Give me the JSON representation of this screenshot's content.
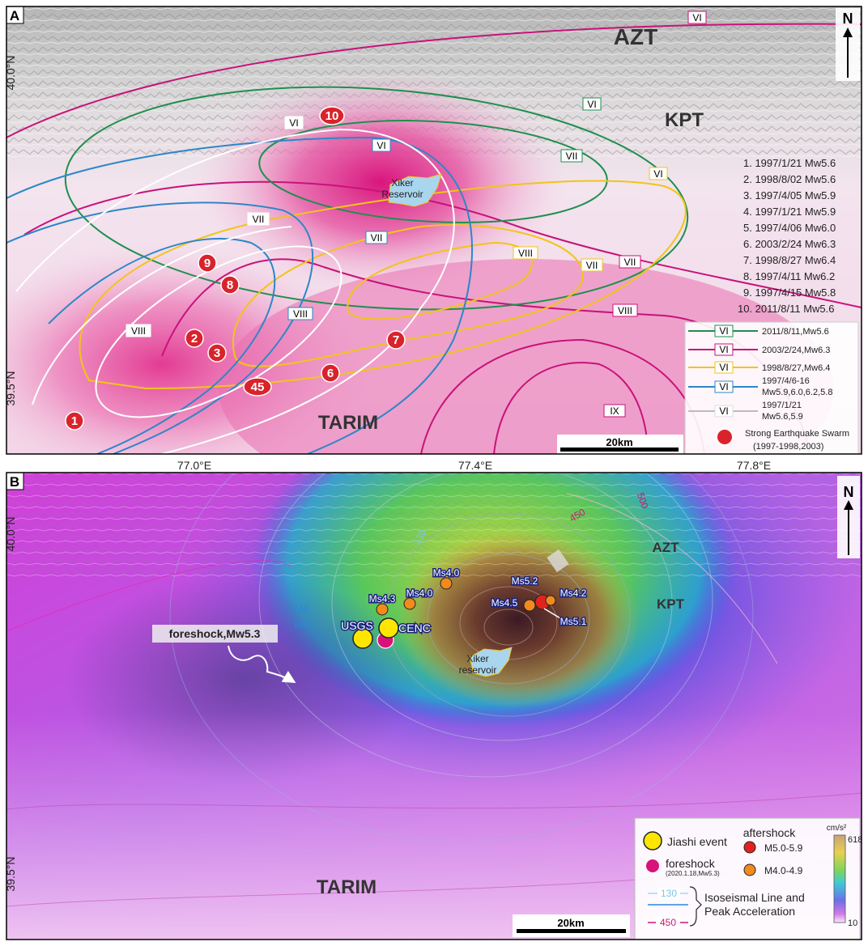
{
  "panel_a": {
    "letter": "A",
    "north": "N",
    "regions": {
      "azt": "AZT",
      "kpt": "KPT",
      "tarim": "TARIM"
    },
    "reservoir": [
      "Xiker",
      "Reservoir"
    ],
    "lat_labels": [
      "40.0°N",
      "39.5°N"
    ],
    "lon_labels": [
      "77.0°E",
      "77.4°E",
      "77.8°E"
    ],
    "scale": "20km",
    "intensity_labels": [
      "VI",
      "VI",
      "VI",
      "VI",
      "VI",
      "VII",
      "VII",
      "VII",
      "VII",
      "VII",
      "VIII",
      "VIII",
      "VIII",
      "VIII",
      "IX"
    ],
    "quake_list": [
      "1. 1997/1/21 Mw5.6",
      "2. 1998/8/02 Mw5.6",
      "3. 1997/4/05 Mw5.9",
      "4. 1997/1/21 Mw5.9",
      "5. 1997/4/06 Mw6.0",
      "6. 2003/2/24 Mw6.3",
      "7. 1998/8/27 Mw6.4",
      "8. 1997/4/11 Mw6.2",
      "9. 1997/4/15 Mw5.8",
      "10. 2011/8/11 Mw5.6"
    ],
    "markers": [
      "1",
      "2",
      "3",
      "45",
      "6",
      "7",
      "8",
      "9",
      "10"
    ],
    "legend": [
      {
        "sym": "VI",
        "text": "2011/8/11,Mw5.6",
        "color": "#1e8f4e"
      },
      {
        "sym": "VI",
        "text": "2003/2/24,Mw6.3",
        "color": "#c8127a"
      },
      {
        "sym": "VI",
        "text": "1998/8/27,Mw6.4",
        "color": "#f2c419"
      },
      {
        "sym": "VI",
        "text": "1997/4/6-16",
        "text2": "Mw5.9,6.0,6.2,5.8",
        "color": "#2e86c8"
      },
      {
        "sym": "VI",
        "text": "1997/1/21",
        "text2": "Mw5.6,5.9",
        "color": "#ffffff"
      }
    ],
    "swarm": [
      "Strong Earthquake Swarm",
      "(1997-1998,2003)"
    ]
  },
  "panel_b": {
    "letter": "B",
    "north": "N",
    "regions": {
      "azt": "AZT",
      "kpt": "KPT",
      "tarim": "TARIM"
    },
    "reservoir": [
      "Xiker",
      "reservoir"
    ],
    "lat_labels": [
      "40.0°N",
      "39.5°N"
    ],
    "foreshock_label": "foreshock,Mw5.3",
    "source_labels": {
      "usgs": "USGS",
      "cenc": "CENC"
    },
    "aftershocks": [
      "Ms4.0",
      "Ms4.3",
      "Ms4.0",
      "Ms5.2",
      "Ms4.2",
      "Ms4.5",
      "Ms5.1"
    ],
    "contour_labels": [
      "140",
      "160",
      "130",
      "450",
      "500"
    ],
    "scale": "20km",
    "legend": {
      "jiashi": "Jiashi event",
      "foreshock": "foreshock",
      "foreshock_sub": "(2020.1.18,Mw5.3)",
      "aftershock_title": "aftershock",
      "m5": "M5.0-5.9",
      "m4": "M4.0-4.9",
      "iso_130": "130",
      "iso_450": "450",
      "iso_text1": "Isoseismal Line and",
      "iso_text2": "Peak Acceleration",
      "unit": "cm/s²",
      "cb_max": "618",
      "cb_min": "10"
    }
  }
}
